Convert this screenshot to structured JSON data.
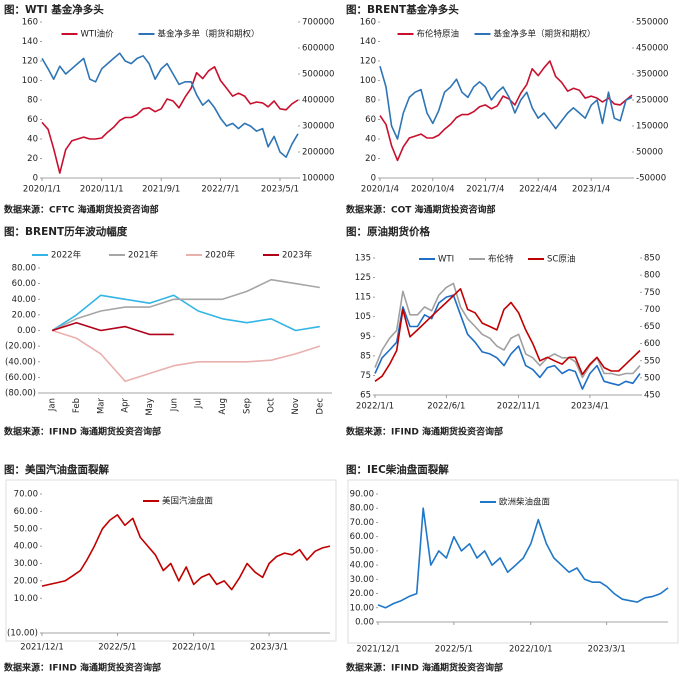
{
  "chart_data": [
    {
      "type": "line",
      "title": "图：WTI 基金净多头",
      "source": "数据来源：CFTC   海通期货投资咨询部",
      "x": [
        "2020/1/1",
        "2020/2/1",
        "2020/3/1",
        "2020/4/1",
        "2020/5/1",
        "2020/6/1",
        "2020/7/1",
        "2020/8/1",
        "2020/9/1",
        "2020/10/1",
        "2020/11/1",
        "2020/12/1",
        "2021/1/1",
        "2021/2/1",
        "2021/3/1",
        "2021/4/1",
        "2021/5/1",
        "2021/6/1",
        "2021/7/1",
        "2021/8/1",
        "2021/9/1",
        "2021/10/1",
        "2021/11/1",
        "2021/12/1",
        "2022/1/1",
        "2022/2/1",
        "2022/3/1",
        "2022/4/1",
        "2022/5/1",
        "2022/6/1",
        "2022/7/1",
        "2022/8/1",
        "2022/9/1",
        "2022/10/1",
        "2022/11/1",
        "2022/12/1",
        "2023/1/1",
        "2023/2/1",
        "2023/3/1",
        "2023/4/1",
        "2023/5/1",
        "2023/6/1",
        "2023/7/1",
        "2023/8/1"
      ],
      "xticks": [
        "2020/1/1",
        "2020/11/1",
        "2021/9/1",
        "2022/7/1",
        "2023/5/1"
      ],
      "ylim": [
        0,
        160
      ],
      "yticks": [
        0,
        20,
        40,
        60,
        80,
        100,
        120,
        140,
        160
      ],
      "y2lim": [
        100000,
        700000
      ],
      "y2ticks": [
        100000,
        200000,
        300000,
        400000,
        500000,
        600000,
        700000
      ],
      "series": [
        {
          "name": "WTI油价",
          "color": "#c8102e",
          "values": [
            57,
            50,
            30,
            5,
            29,
            38,
            40,
            42,
            40,
            40,
            41,
            47,
            52,
            59,
            62,
            62,
            65,
            71,
            72,
            68,
            71,
            81,
            79,
            72,
            83,
            92,
            108,
            102,
            110,
            114,
            100,
            92,
            84,
            87,
            84,
            76,
            78,
            77,
            73,
            79,
            71,
            70,
            76,
            80
          ]
        },
        {
          "name": "基金净多单（期货和期权）",
          "color": "#2e75b6",
          "axis": "y2",
          "values": [
            560000,
            520000,
            480000,
            530000,
            500000,
            520000,
            540000,
            560000,
            480000,
            470000,
            520000,
            540000,
            560000,
            580000,
            550000,
            540000,
            560000,
            570000,
            540000,
            480000,
            520000,
            540000,
            500000,
            460000,
            470000,
            470000,
            420000,
            380000,
            400000,
            370000,
            330000,
            300000,
            310000,
            290000,
            310000,
            300000,
            280000,
            290000,
            220000,
            260000,
            200000,
            180000,
            230000,
            270000
          ]
        }
      ]
    },
    {
      "type": "line",
      "title": "图：BRENT基金净多头",
      "source": "数据来源：COT   海通期货投资咨询部",
      "x": [
        "2020/1/4",
        "2020/2/4",
        "2020/3/4",
        "2020/4/4",
        "2020/5/4",
        "2020/6/4",
        "2020/7/4",
        "2020/8/4",
        "2020/9/4",
        "2020/10/4",
        "2020/11/4",
        "2020/12/4",
        "2021/1/4",
        "2021/2/4",
        "2021/3/4",
        "2021/4/4",
        "2021/5/4",
        "2021/6/4",
        "2021/7/4",
        "2021/8/4",
        "2021/9/4",
        "2021/10/4",
        "2021/11/4",
        "2021/12/4",
        "2022/1/4",
        "2022/2/4",
        "2022/3/4",
        "2022/4/4",
        "2022/5/4",
        "2022/6/4",
        "2022/7/4",
        "2022/8/4",
        "2022/9/4",
        "2022/10/4",
        "2022/11/4",
        "2022/12/4",
        "2023/1/4",
        "2023/2/4",
        "2023/3/4",
        "2023/4/4",
        "2023/5/4",
        "2023/6/4",
        "2023/7/4",
        "2023/8/4"
      ],
      "xticks": [
        "2020/1/4",
        "2020/10/4",
        "2021/7/4",
        "2022/4/4",
        "2023/1/4"
      ],
      "ylim": [
        0,
        160
      ],
      "yticks": [
        0,
        20,
        40,
        60,
        80,
        100,
        120,
        140,
        160
      ],
      "y2lim": [
        -50000,
        550000
      ],
      "y2ticks": [
        -50000,
        50000,
        150000,
        250000,
        350000,
        450000,
        550000
      ],
      "series": [
        {
          "name": "布伦特原油",
          "color": "#c8102e",
          "values": [
            64,
            55,
            33,
            18,
            32,
            41,
            43,
            45,
            41,
            41,
            44,
            50,
            55,
            62,
            65,
            65,
            68,
            73,
            75,
            71,
            74,
            84,
            81,
            75,
            87,
            96,
            112,
            105,
            113,
            120,
            104,
            98,
            89,
            92,
            90,
            82,
            84,
            82,
            78,
            82,
            76,
            75,
            80,
            85
          ]
        },
        {
          "name": "基金净多单（期货和期权）",
          "color": "#2e75b6",
          "axis": "y2",
          "values": [
            380000,
            300000,
            150000,
            100000,
            200000,
            260000,
            280000,
            290000,
            200000,
            160000,
            210000,
            280000,
            300000,
            330000,
            280000,
            260000,
            300000,
            320000,
            300000,
            250000,
            280000,
            300000,
            260000,
            200000,
            250000,
            280000,
            220000,
            180000,
            200000,
            170000,
            140000,
            170000,
            200000,
            220000,
            200000,
            180000,
            230000,
            250000,
            160000,
            280000,
            180000,
            170000,
            250000,
            260000
          ]
        }
      ]
    },
    {
      "type": "line",
      "title": "图：BRENT历年波动幅度",
      "source": "数据来源：IFIND   海通期货投资咨询部",
      "categories": [
        "Jan",
        "Feb",
        "Mar",
        "Apr",
        "May",
        "Jun",
        "Jul",
        "Aug",
        "Sep",
        "Oct",
        "Nov",
        "Dec"
      ],
      "ylim": [
        -80,
        80
      ],
      "yticks": [
        {
          "value": -80,
          "label": "(80.00)"
        },
        {
          "value": -60,
          "label": "(60.00)"
        },
        {
          "value": -40,
          "label": "(40.00)"
        },
        {
          "value": -20,
          "label": "(20.00)"
        },
        {
          "value": 0,
          "label": "0.00"
        },
        {
          "value": 20,
          "label": "20.00"
        },
        {
          "value": 40,
          "label": "40.00"
        },
        {
          "value": 60,
          "label": "60.00"
        },
        {
          "value": 80,
          "label": "80.00"
        }
      ],
      "series": [
        {
          "name": "2022年",
          "color": "#33b5e5",
          "values": [
            0,
            20,
            45,
            40,
            35,
            45,
            25,
            15,
            10,
            15,
            0,
            5
          ]
        },
        {
          "name": "2021年",
          "color": "#a6a6a6",
          "values": [
            0,
            15,
            25,
            30,
            30,
            40,
            40,
            40,
            50,
            65,
            60,
            55
          ]
        },
        {
          "name": "2020年",
          "color": "#eab0ae",
          "values": [
            0,
            -10,
            -30,
            -65,
            -55,
            -45,
            -40,
            -40,
            -40,
            -38,
            -30,
            -20
          ]
        },
        {
          "name": "2023年",
          "color": "#b0001a",
          "values": [
            0,
            10,
            0,
            5,
            -5,
            -5,
            null,
            null,
            null,
            null,
            null,
            null
          ]
        }
      ]
    },
    {
      "type": "line",
      "title": "图：原油期货价格",
      "source": "数据来源：IFIND   海通期货投资咨询部",
      "x": [
        "2022/1/1",
        "2022/1/16",
        "2022/2/1",
        "2022/2/16",
        "2022/3/1",
        "2022/3/16",
        "2022/4/1",
        "2022/4/16",
        "2022/5/1",
        "2022/5/16",
        "2022/6/1",
        "2022/6/16",
        "2022/7/1",
        "2022/7/16",
        "2022/8/1",
        "2022/8/16",
        "2022/9/1",
        "2022/9/16",
        "2022/10/1",
        "2022/10/16",
        "2022/11/1",
        "2022/11/16",
        "2022/12/1",
        "2022/12/16",
        "2023/1/1",
        "2023/1/16",
        "2023/2/1",
        "2023/2/16",
        "2023/3/1",
        "2023/3/16",
        "2023/4/1",
        "2023/4/16",
        "2023/5/1",
        "2023/5/16",
        "2023/6/1",
        "2023/6/16",
        "2023/7/1",
        "2023/7/16"
      ],
      "xticks": [
        "2022/1/1",
        "2022/6/1",
        "2022/11/1",
        "2023/4/1"
      ],
      "ylim": [
        65,
        135
      ],
      "yticks": [
        65,
        75,
        85,
        95,
        105,
        115,
        125,
        135
      ],
      "y2lim": [
        450,
        850
      ],
      "y2ticks": [
        450,
        500,
        550,
        600,
        650,
        700,
        750,
        800,
        850
      ],
      "series": [
        {
          "name": "WTI",
          "color": "#1f6fc5",
          "values": [
            76,
            84,
            88,
            92,
            110,
            100,
            100,
            106,
            104,
            112,
            115,
            116,
            106,
            96,
            92,
            87,
            86,
            84,
            80,
            86,
            90,
            80,
            78,
            74,
            79,
            80,
            76,
            78,
            77,
            68,
            76,
            80,
            72,
            71,
            70,
            72,
            71,
            76
          ]
        },
        {
          "name": "布伦特",
          "color": "#a0a0a0",
          "values": [
            79,
            88,
            94,
            98,
            118,
            106,
            106,
            110,
            108,
            116,
            120,
            122,
            110,
            104,
            100,
            96,
            94,
            90,
            88,
            94,
            96,
            86,
            84,
            80,
            84,
            86,
            84,
            84,
            82,
            74,
            80,
            84,
            76,
            76,
            75,
            76,
            76,
            80
          ]
        },
        {
          "name": "SC原油",
          "color": "#c00000",
          "axis": "y2",
          "values": [
            490,
            505,
            540,
            580,
            700,
            620,
            640,
            660,
            680,
            700,
            720,
            740,
            760,
            700,
            690,
            660,
            650,
            640,
            700,
            720,
            690,
            640,
            600,
            550,
            560,
            550,
            540,
            560,
            560,
            510,
            540,
            560,
            530,
            520,
            520,
            540,
            560,
            580
          ]
        }
      ]
    },
    {
      "type": "line",
      "title": "图：美国汽油盘面裂解",
      "source": "数据来源：IFIND   海通期货投资咨询部",
      "x": [
        "2021/12/1",
        "2021/12/16",
        "2022/1/1",
        "2022/1/16",
        "2022/2/1",
        "2022/2/16",
        "2022/3/1",
        "2022/3/16",
        "2022/4/1",
        "2022/4/16",
        "2022/5/1",
        "2022/5/16",
        "2022/6/1",
        "2022/6/16",
        "2022/7/1",
        "2022/7/16",
        "2022/8/1",
        "2022/8/16",
        "2022/9/1",
        "2022/9/16",
        "2022/10/1",
        "2022/10/16",
        "2022/11/1",
        "2022/11/16",
        "2022/12/1",
        "2022/12/16",
        "2023/1/1",
        "2023/1/16",
        "2023/2/1",
        "2023/2/16",
        "2023/3/1",
        "2023/3/16",
        "2023/4/1",
        "2023/4/16",
        "2023/5/1",
        "2023/5/16",
        "2023/6/1",
        "2023/6/16",
        "2023/7/1"
      ],
      "xticks": [
        "2021/12/1",
        "2022/5/1",
        "2022/10/1",
        "2023/3/1"
      ],
      "ylim": [
        -10,
        70
      ],
      "yticks": [
        {
          "value": -10,
          "label": "(10.00)"
        },
        {
          "value": 10,
          "label": "10.00"
        },
        {
          "value": 20,
          "label": "20.00"
        },
        {
          "value": 30,
          "label": "30.00"
        },
        {
          "value": 40,
          "label": "40.00"
        },
        {
          "value": 50,
          "label": "50.00"
        },
        {
          "value": 60,
          "label": "60.00"
        },
        {
          "value": 70,
          "label": "70.00"
        }
      ],
      "series": [
        {
          "name": "美国汽油盘面",
          "color": "#c00000",
          "values": [
            17,
            18,
            19,
            20,
            23,
            26,
            32,
            40,
            50,
            55,
            58,
            52,
            56,
            45,
            40,
            35,
            26,
            30,
            20,
            28,
            18,
            22,
            24,
            18,
            20,
            15,
            22,
            30,
            25,
            22,
            30,
            34,
            36,
            35,
            38,
            32,
            37,
            39,
            40
          ]
        }
      ]
    },
    {
      "type": "line",
      "title": "图：IEC柴油盘面裂解",
      "source": "数据来源：IFIND   海通期货投资咨询部",
      "x": [
        "2021/12/1",
        "2021/12/16",
        "2022/1/1",
        "2022/1/16",
        "2022/2/1",
        "2022/2/16",
        "2022/3/1",
        "2022/3/16",
        "2022/4/1",
        "2022/4/16",
        "2022/5/1",
        "2022/5/16",
        "2022/6/1",
        "2022/6/16",
        "2022/7/1",
        "2022/7/16",
        "2022/8/1",
        "2022/8/16",
        "2022/9/1",
        "2022/9/16",
        "2022/10/1",
        "2022/10/16",
        "2022/11/1",
        "2022/11/16",
        "2022/12/1",
        "2022/12/16",
        "2023/1/1",
        "2023/1/16",
        "2023/2/1",
        "2023/2/16",
        "2023/3/1",
        "2023/3/16",
        "2023/4/1",
        "2023/4/16",
        "2023/5/1",
        "2023/5/16",
        "2023/6/1",
        "2023/6/16",
        "2023/7/1"
      ],
      "xticks": [
        "2021/12/1",
        "2022/5/1",
        "2022/10/1",
        "2023/3/1"
      ],
      "ylim": [
        0,
        90
      ],
      "yticks": [
        {
          "value": 0,
          "label": "0.00"
        },
        {
          "value": 10,
          "label": "10.00"
        },
        {
          "value": 20,
          "label": "20.00"
        },
        {
          "value": 30,
          "label": "30.00"
        },
        {
          "value": 40,
          "label": "40.00"
        },
        {
          "value": 50,
          "label": "50.00"
        },
        {
          "value": 60,
          "label": "60.00"
        },
        {
          "value": 70,
          "label": "70.00"
        },
        {
          "value": 80,
          "label": "80.00"
        },
        {
          "value": 90,
          "label": "90.00"
        }
      ],
      "series": [
        {
          "name": "欧洲柴油盘面",
          "color": "#1f77c8",
          "values": [
            12,
            10,
            13,
            15,
            18,
            20,
            80,
            40,
            50,
            45,
            60,
            50,
            55,
            45,
            50,
            40,
            45,
            35,
            40,
            45,
            55,
            72,
            55,
            45,
            40,
            35,
            38,
            30,
            28,
            28,
            25,
            20,
            16,
            15,
            14,
            17,
            18,
            20,
            24
          ]
        }
      ]
    }
  ]
}
